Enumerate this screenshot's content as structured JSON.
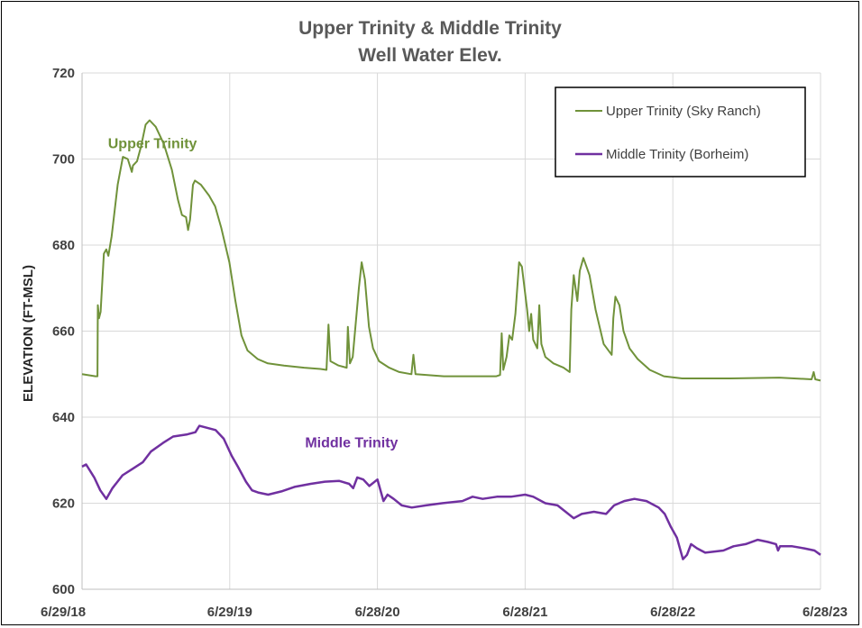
{
  "chart_data": {
    "type": "line",
    "title": "Upper Trinity & Middle Trinity",
    "subtitle": "Well Water Elev.",
    "ylabel": "ELEVATION (FT-MSL)",
    "xlabel": "",
    "ylim": [
      600,
      720
    ],
    "yticks": [
      600,
      620,
      640,
      660,
      680,
      700,
      720
    ],
    "xlim": [
      "2018-06-29",
      "2023-06-28"
    ],
    "xtick_labels": [
      "6/29/18",
      "6/29/19",
      "6/28/20",
      "6/28/21",
      "6/28/22",
      "6/28/23"
    ],
    "xtick_dates": [
      "2018-06-29",
      "2019-06-29",
      "2020-06-28",
      "2021-06-28",
      "2022-06-28",
      "2023-06-28"
    ],
    "grid": true,
    "legend_position": "top-right",
    "series": [
      {
        "name": "Upper Trinity (Sky Ranch)",
        "color": "#70923a",
        "points": [
          [
            "2018-06-29",
            650.0
          ],
          [
            "2018-08-01",
            649.5
          ],
          [
            "2018-08-06",
            649.5
          ],
          [
            "2018-08-07",
            666.0
          ],
          [
            "2018-08-10",
            663.0
          ],
          [
            "2018-08-14",
            664.5
          ],
          [
            "2018-08-22",
            678.0
          ],
          [
            "2018-08-28",
            679.0
          ],
          [
            "2018-09-02",
            677.5
          ],
          [
            "2018-09-10",
            682.0
          ],
          [
            "2018-09-25",
            694.0
          ],
          [
            "2018-10-08",
            700.5
          ],
          [
            "2018-10-20",
            700.0
          ],
          [
            "2018-10-30",
            697.0
          ],
          [
            "2018-11-02",
            698.5
          ],
          [
            "2018-11-12",
            699.5
          ],
          [
            "2018-11-22",
            703.0
          ],
          [
            "2018-12-03",
            708.0
          ],
          [
            "2018-12-13",
            709.0
          ],
          [
            "2018-12-28",
            707.5
          ],
          [
            "2019-01-17",
            703.5
          ],
          [
            "2019-02-06",
            697.5
          ],
          [
            "2019-02-21",
            690.5
          ],
          [
            "2019-03-03",
            687.0
          ],
          [
            "2019-03-13",
            686.5
          ],
          [
            "2019-03-18",
            683.5
          ],
          [
            "2019-03-23",
            686.0
          ],
          [
            "2019-03-30",
            694.0
          ],
          [
            "2019-04-04",
            695.0
          ],
          [
            "2019-04-19",
            694.0
          ],
          [
            "2019-05-09",
            691.5
          ],
          [
            "2019-05-24",
            689.0
          ],
          [
            "2019-06-08",
            684.0
          ],
          [
            "2019-06-28",
            676.0
          ],
          [
            "2019-07-13",
            667.0
          ],
          [
            "2019-07-28",
            659.0
          ],
          [
            "2019-08-12",
            655.5
          ],
          [
            "2019-09-06",
            653.5
          ],
          [
            "2019-10-01",
            652.5
          ],
          [
            "2019-11-10",
            652.0
          ],
          [
            "2019-12-30",
            651.5
          ],
          [
            "2020-02-08",
            651.2
          ],
          [
            "2020-02-23",
            651.0
          ],
          [
            "2020-02-28",
            661.5
          ],
          [
            "2020-03-04",
            653.0
          ],
          [
            "2020-03-24",
            652.0
          ],
          [
            "2020-04-13",
            651.5
          ],
          [
            "2020-04-16",
            661.0
          ],
          [
            "2020-04-21",
            652.5
          ],
          [
            "2020-04-28",
            654.0
          ],
          [
            "2020-05-13",
            670.0
          ],
          [
            "2020-05-20",
            676.0
          ],
          [
            "2020-05-28",
            672.0
          ],
          [
            "2020-06-07",
            661.0
          ],
          [
            "2020-06-17",
            656.0
          ],
          [
            "2020-07-02",
            653.0
          ],
          [
            "2020-07-27",
            651.5
          ],
          [
            "2020-08-21",
            650.5
          ],
          [
            "2020-09-20",
            650.0
          ],
          [
            "2020-09-25",
            654.5
          ],
          [
            "2020-09-30",
            650.0
          ],
          [
            "2020-12-09",
            649.5
          ],
          [
            "2021-02-27",
            649.5
          ],
          [
            "2021-04-18",
            649.5
          ],
          [
            "2021-04-27",
            649.8
          ],
          [
            "2021-05-01",
            659.5
          ],
          [
            "2021-05-05",
            651.0
          ],
          [
            "2021-05-13",
            654.0
          ],
          [
            "2021-05-20",
            659.0
          ],
          [
            "2021-05-27",
            658.0
          ],
          [
            "2021-06-04",
            664.0
          ],
          [
            "2021-06-13",
            676.0
          ],
          [
            "2021-06-20",
            675.0
          ],
          [
            "2021-07-03",
            665.0
          ],
          [
            "2021-07-08",
            660.0
          ],
          [
            "2021-07-13",
            664.0
          ],
          [
            "2021-07-18",
            658.0
          ],
          [
            "2021-07-28",
            656.0
          ],
          [
            "2021-08-02",
            666.0
          ],
          [
            "2021-08-07",
            657.0
          ],
          [
            "2021-08-17",
            654.0
          ],
          [
            "2021-09-06",
            652.5
          ],
          [
            "2021-10-01",
            651.5
          ],
          [
            "2021-10-16",
            650.5
          ],
          [
            "2021-10-20",
            665.0
          ],
          [
            "2021-10-26",
            673.0
          ],
          [
            "2021-11-04",
            667.0
          ],
          [
            "2021-11-10",
            674.0
          ],
          [
            "2021-11-19",
            677.0
          ],
          [
            "2021-12-04",
            673.0
          ],
          [
            "2021-12-19",
            665.0
          ],
          [
            "2022-01-08",
            657.0
          ],
          [
            "2022-01-28",
            654.5
          ],
          [
            "2022-02-01",
            663.0
          ],
          [
            "2022-02-06",
            668.0
          ],
          [
            "2022-02-16",
            666.0
          ],
          [
            "2022-02-26",
            660.0
          ],
          [
            "2022-03-13",
            656.0
          ],
          [
            "2022-04-02",
            653.5
          ],
          [
            "2022-05-02",
            651.0
          ],
          [
            "2022-06-06",
            649.5
          ],
          [
            "2022-07-21",
            649.0
          ],
          [
            "2022-11-18",
            649.0
          ],
          [
            "2023-03-18",
            649.2
          ],
          [
            "2023-06-06",
            648.8
          ],
          [
            "2023-06-11",
            650.5
          ],
          [
            "2023-06-15",
            648.8
          ],
          [
            "2023-06-28",
            648.5
          ]
        ]
      },
      {
        "name": "Middle Trinity (Borheim)",
        "color": "#7030a0",
        "points": [
          [
            "2018-06-29",
            628.5
          ],
          [
            "2018-07-09",
            629.0
          ],
          [
            "2018-07-29",
            626.0
          ],
          [
            "2018-08-13",
            623.0
          ],
          [
            "2018-08-28",
            621.0
          ],
          [
            "2018-09-12",
            623.5
          ],
          [
            "2018-10-07",
            626.5
          ],
          [
            "2018-11-01",
            628.0
          ],
          [
            "2018-11-26",
            629.5
          ],
          [
            "2018-12-16",
            632.0
          ],
          [
            "2019-01-15",
            634.0
          ],
          [
            "2019-02-09",
            635.5
          ],
          [
            "2019-03-16",
            636.0
          ],
          [
            "2019-04-05",
            636.5
          ],
          [
            "2019-04-15",
            638.0
          ],
          [
            "2019-05-05",
            637.5
          ],
          [
            "2019-05-25",
            637.0
          ],
          [
            "2019-06-14",
            635.0
          ],
          [
            "2019-07-04",
            631.0
          ],
          [
            "2019-07-19",
            628.5
          ],
          [
            "2019-08-08",
            625.0
          ],
          [
            "2019-08-23",
            623.0
          ],
          [
            "2019-09-07",
            622.5
          ],
          [
            "2019-10-02",
            622.0
          ],
          [
            "2019-11-06",
            622.8
          ],
          [
            "2019-12-06",
            623.8
          ],
          [
            "2020-01-15",
            624.5
          ],
          [
            "2020-02-19",
            625.0
          ],
          [
            "2020-03-25",
            625.2
          ],
          [
            "2020-04-19",
            624.5
          ],
          [
            "2020-04-29",
            623.5
          ],
          [
            "2020-05-09",
            626.0
          ],
          [
            "2020-05-24",
            625.5
          ],
          [
            "2020-06-08",
            624.0
          ],
          [
            "2020-06-28",
            625.5
          ],
          [
            "2020-07-13",
            620.5
          ],
          [
            "2020-07-23",
            622.0
          ],
          [
            "2020-08-07",
            621.0
          ],
          [
            "2020-08-27",
            619.5
          ],
          [
            "2020-09-21",
            619.0
          ],
          [
            "2020-10-26",
            619.5
          ],
          [
            "2020-12-05",
            620.0
          ],
          [
            "2021-01-24",
            620.5
          ],
          [
            "2021-02-18",
            621.5
          ],
          [
            "2021-03-15",
            621.0
          ],
          [
            "2021-04-19",
            621.5
          ],
          [
            "2021-05-24",
            621.5
          ],
          [
            "2021-06-28",
            622.0
          ],
          [
            "2021-07-18",
            621.5
          ],
          [
            "2021-08-17",
            620.0
          ],
          [
            "2021-09-16",
            619.5
          ],
          [
            "2021-10-06",
            618.0
          ],
          [
            "2021-10-26",
            616.5
          ],
          [
            "2021-11-15",
            617.5
          ],
          [
            "2021-12-15",
            618.0
          ],
          [
            "2022-01-14",
            617.5
          ],
          [
            "2022-02-03",
            619.5
          ],
          [
            "2022-02-28",
            620.5
          ],
          [
            "2022-03-25",
            621.0
          ],
          [
            "2022-04-24",
            620.5
          ],
          [
            "2022-05-24",
            619.0
          ],
          [
            "2022-06-08",
            617.5
          ],
          [
            "2022-06-23",
            614.5
          ],
          [
            "2022-07-08",
            612.0
          ],
          [
            "2022-07-23",
            607.0
          ],
          [
            "2022-08-02",
            608.0
          ],
          [
            "2022-08-12",
            610.5
          ],
          [
            "2022-08-27",
            609.5
          ],
          [
            "2022-09-16",
            608.5
          ],
          [
            "2022-10-31",
            609.0
          ],
          [
            "2022-11-25",
            610.0
          ],
          [
            "2022-12-25",
            610.5
          ],
          [
            "2023-01-24",
            611.5
          ],
          [
            "2023-02-18",
            611.0
          ],
          [
            "2023-03-10",
            610.5
          ],
          [
            "2023-03-15",
            609.0
          ],
          [
            "2023-03-20",
            610.0
          ],
          [
            "2023-04-19",
            610.0
          ],
          [
            "2023-05-19",
            609.5
          ],
          [
            "2023-06-13",
            609.0
          ],
          [
            "2023-06-28",
            608.0
          ]
        ]
      }
    ],
    "annotations": [
      {
        "text": "Upper Trinity",
        "color": "#70923a",
        "x": "2018-12-20",
        "y": 702.5
      },
      {
        "text": "Middle Trinity",
        "color": "#7030a0",
        "x": "2020-04-25",
        "y": 633.0
      }
    ]
  }
}
